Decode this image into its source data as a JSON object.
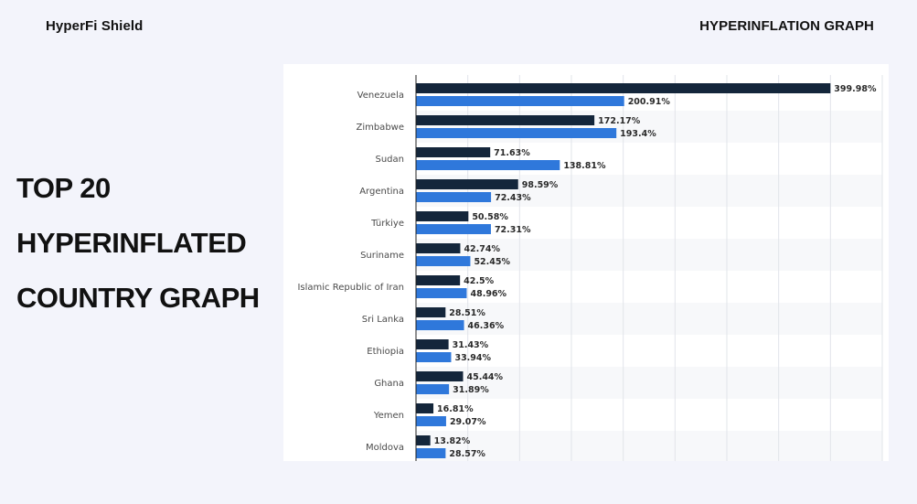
{
  "header": {
    "brand": "HyperFi Shield",
    "nav_title": "HYPERINFLATION GRAPH"
  },
  "headline": {
    "lines": [
      "TOP 20",
      "HYPERINFLATED",
      "COUNTRY GRAPH"
    ]
  },
  "colors": {
    "series_dark": "#14263b",
    "series_blue": "#2f78db",
    "grid": "#e2e4ea",
    "axis": "#222222",
    "band": "#f7f8fa"
  },
  "chart_data": {
    "type": "bar",
    "orientation": "horizontal",
    "categories": [
      "Venezuela",
      "Zimbabwe",
      "Sudan",
      "Argentina",
      "Türkiye",
      "Suriname",
      "Islamic Republic of Iran",
      "Sri Lanka",
      "Ethiopia",
      "Ghana",
      "Yemen",
      "Moldova"
    ],
    "series": [
      {
        "values": [
          399.98,
          172.17,
          71.63,
          98.59,
          50.58,
          42.74,
          42.5,
          28.51,
          31.43,
          45.44,
          16.81,
          13.82
        ],
        "labels": [
          "399.98%",
          "172.17%",
          "71.63%",
          "98.59%",
          "50.58%",
          "42.74%",
          "42.5%",
          "28.51%",
          "31.43%",
          "45.44%",
          "16.81%",
          "13.82%"
        ]
      },
      {
        "values": [
          200.91,
          193.4,
          138.81,
          72.43,
          72.31,
          52.45,
          48.96,
          46.36,
          33.94,
          31.89,
          29.07,
          28.57
        ],
        "labels": [
          "200.91%",
          "193.4%",
          "138.81%",
          "72.43%",
          "72.31%",
          "52.45%",
          "48.96%",
          "46.36%",
          "33.94%",
          "31.89%",
          "29.07%",
          "28.57%"
        ]
      }
    ],
    "xlim": [
      0,
      450
    ],
    "grid": true,
    "legend": "none"
  }
}
